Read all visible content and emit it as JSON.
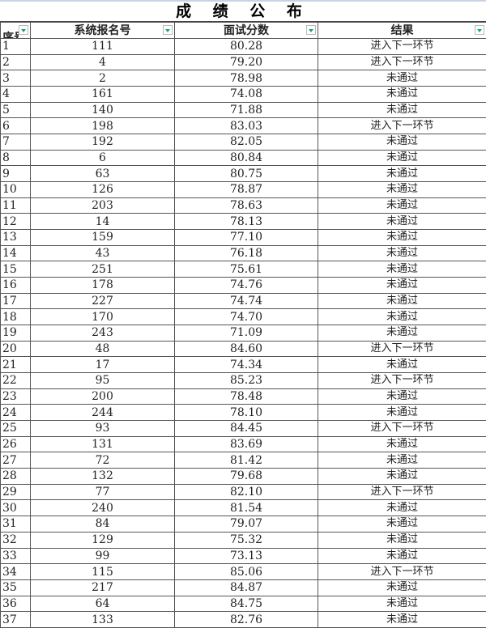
{
  "title": "成 绩 公 布",
  "headers": [
    "序号",
    "系统报名号",
    "面试分数",
    "结果"
  ],
  "rows": [
    [
      "1",
      "111",
      "80.28",
      "进入下一环节"
    ],
    [
      "2",
      "4",
      "79.20",
      "进入下一环节"
    ],
    [
      "3",
      "2",
      "78.98",
      "未通过"
    ],
    [
      "4",
      "161",
      "74.08",
      "未通过"
    ],
    [
      "5",
      "140",
      "71.88",
      "未通过"
    ],
    [
      "6",
      "198",
      "83.03",
      "进入下一环节"
    ],
    [
      "7",
      "192",
      "82.05",
      "未通过"
    ],
    [
      "8",
      "6",
      "80.84",
      "未通过"
    ],
    [
      "9",
      "63",
      "80.75",
      "未通过"
    ],
    [
      "10",
      "126",
      "78.87",
      "未通过"
    ],
    [
      "11",
      "203",
      "78.63",
      "未通过"
    ],
    [
      "12",
      "14",
      "78.13",
      "未通过"
    ],
    [
      "13",
      "159",
      "77.10",
      "未通过"
    ],
    [
      "14",
      "43",
      "76.18",
      "未通过"
    ],
    [
      "15",
      "251",
      "75.61",
      "未通过"
    ],
    [
      "16",
      "178",
      "74.76",
      "未通过"
    ],
    [
      "17",
      "227",
      "74.74",
      "未通过"
    ],
    [
      "18",
      "170",
      "74.70",
      "未通过"
    ],
    [
      "19",
      "243",
      "71.09",
      "未通过"
    ],
    [
      "20",
      "48",
      "84.60",
      "进入下一环节"
    ],
    [
      "21",
      "17",
      "74.34",
      "未通过"
    ],
    [
      "22",
      "95",
      "85.23",
      "进入下一环节"
    ],
    [
      "23",
      "200",
      "78.48",
      "未通过"
    ],
    [
      "24",
      "244",
      "78.10",
      "未通过"
    ],
    [
      "25",
      "93",
      "84.45",
      "进入下一环节"
    ],
    [
      "26",
      "131",
      "83.69",
      "未通过"
    ],
    [
      "27",
      "72",
      "81.42",
      "未通过"
    ],
    [
      "28",
      "132",
      "79.68",
      "未通过"
    ],
    [
      "29",
      "77",
      "82.10",
      "进入下一环节"
    ],
    [
      "30",
      "240",
      "81.54",
      "未通过"
    ],
    [
      "31",
      "84",
      "79.07",
      "未通过"
    ],
    [
      "32",
      "129",
      "75.32",
      "未通过"
    ],
    [
      "33",
      "99",
      "73.13",
      "未通过"
    ],
    [
      "34",
      "115",
      "85.06",
      "进入下一环节"
    ],
    [
      "35",
      "217",
      "84.87",
      "未通过"
    ],
    [
      "36",
      "64",
      "84.75",
      "未通过"
    ],
    [
      "37",
      "133",
      "82.76",
      "未通过"
    ]
  ],
  "colors": {
    "filter_arrow": "#1aa37a",
    "grid": "#555555"
  }
}
